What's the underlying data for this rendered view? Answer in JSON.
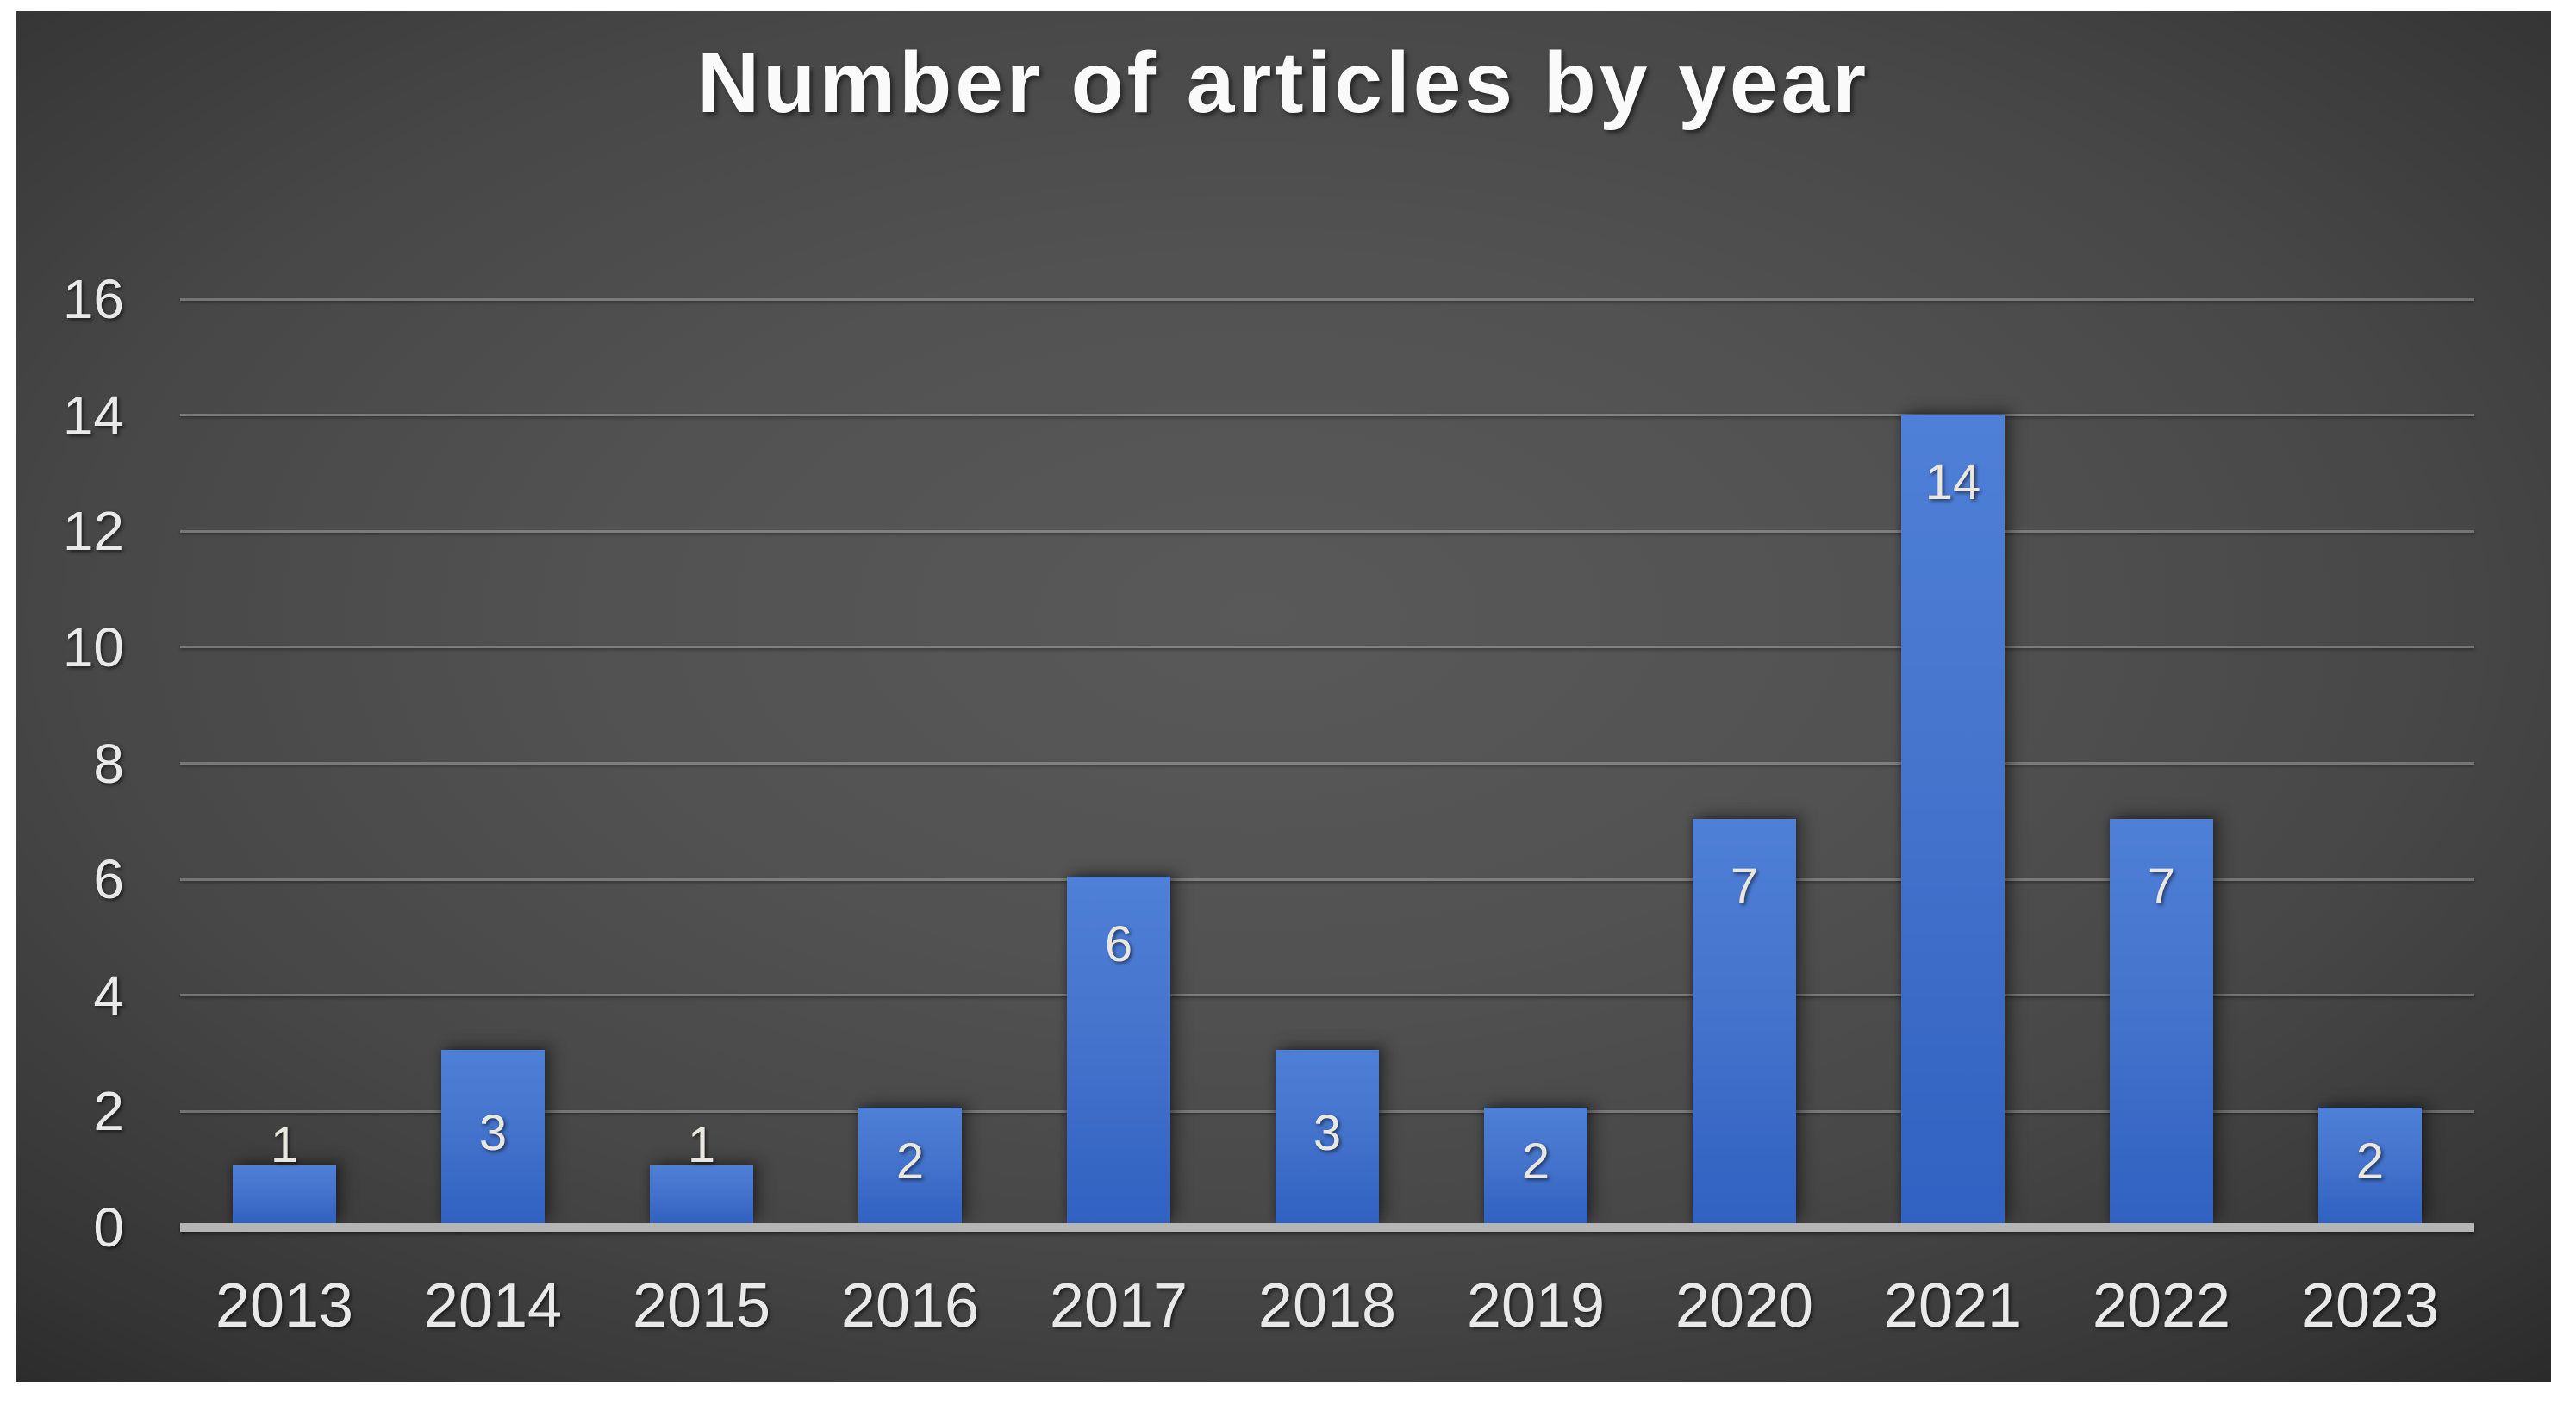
{
  "page": {
    "background": "#ffffff"
  },
  "panel": {
    "background_center": "#595959",
    "background_corner": "#1f1f1f"
  },
  "chart_data": {
    "type": "bar",
    "title": "Number of articles by year",
    "categories": [
      "2013",
      "2014",
      "2015",
      "2016",
      "2017",
      "2018",
      "2019",
      "2020",
      "2021",
      "2022",
      "2023"
    ],
    "values": [
      1,
      3,
      1,
      2,
      6,
      3,
      2,
      7,
      14,
      7,
      2
    ],
    "xlabel": "",
    "ylabel": "",
    "ylim": [
      0,
      16
    ],
    "yticks": [
      0,
      2,
      4,
      6,
      8,
      10,
      12,
      14,
      16
    ],
    "grid": true,
    "legend": false,
    "data_labels": true,
    "colors": {
      "bar_top": "#4f80d8",
      "bar_mid": "#4474cc",
      "bar_bottom": "#3161c2",
      "gridline": "rgba(255,255,255,0.26)",
      "axis_line": "#b5b5b5",
      "axis_text": "#e9e9e9",
      "data_label_text": "#e9e7e0",
      "title_text": "#fafafa"
    }
  }
}
